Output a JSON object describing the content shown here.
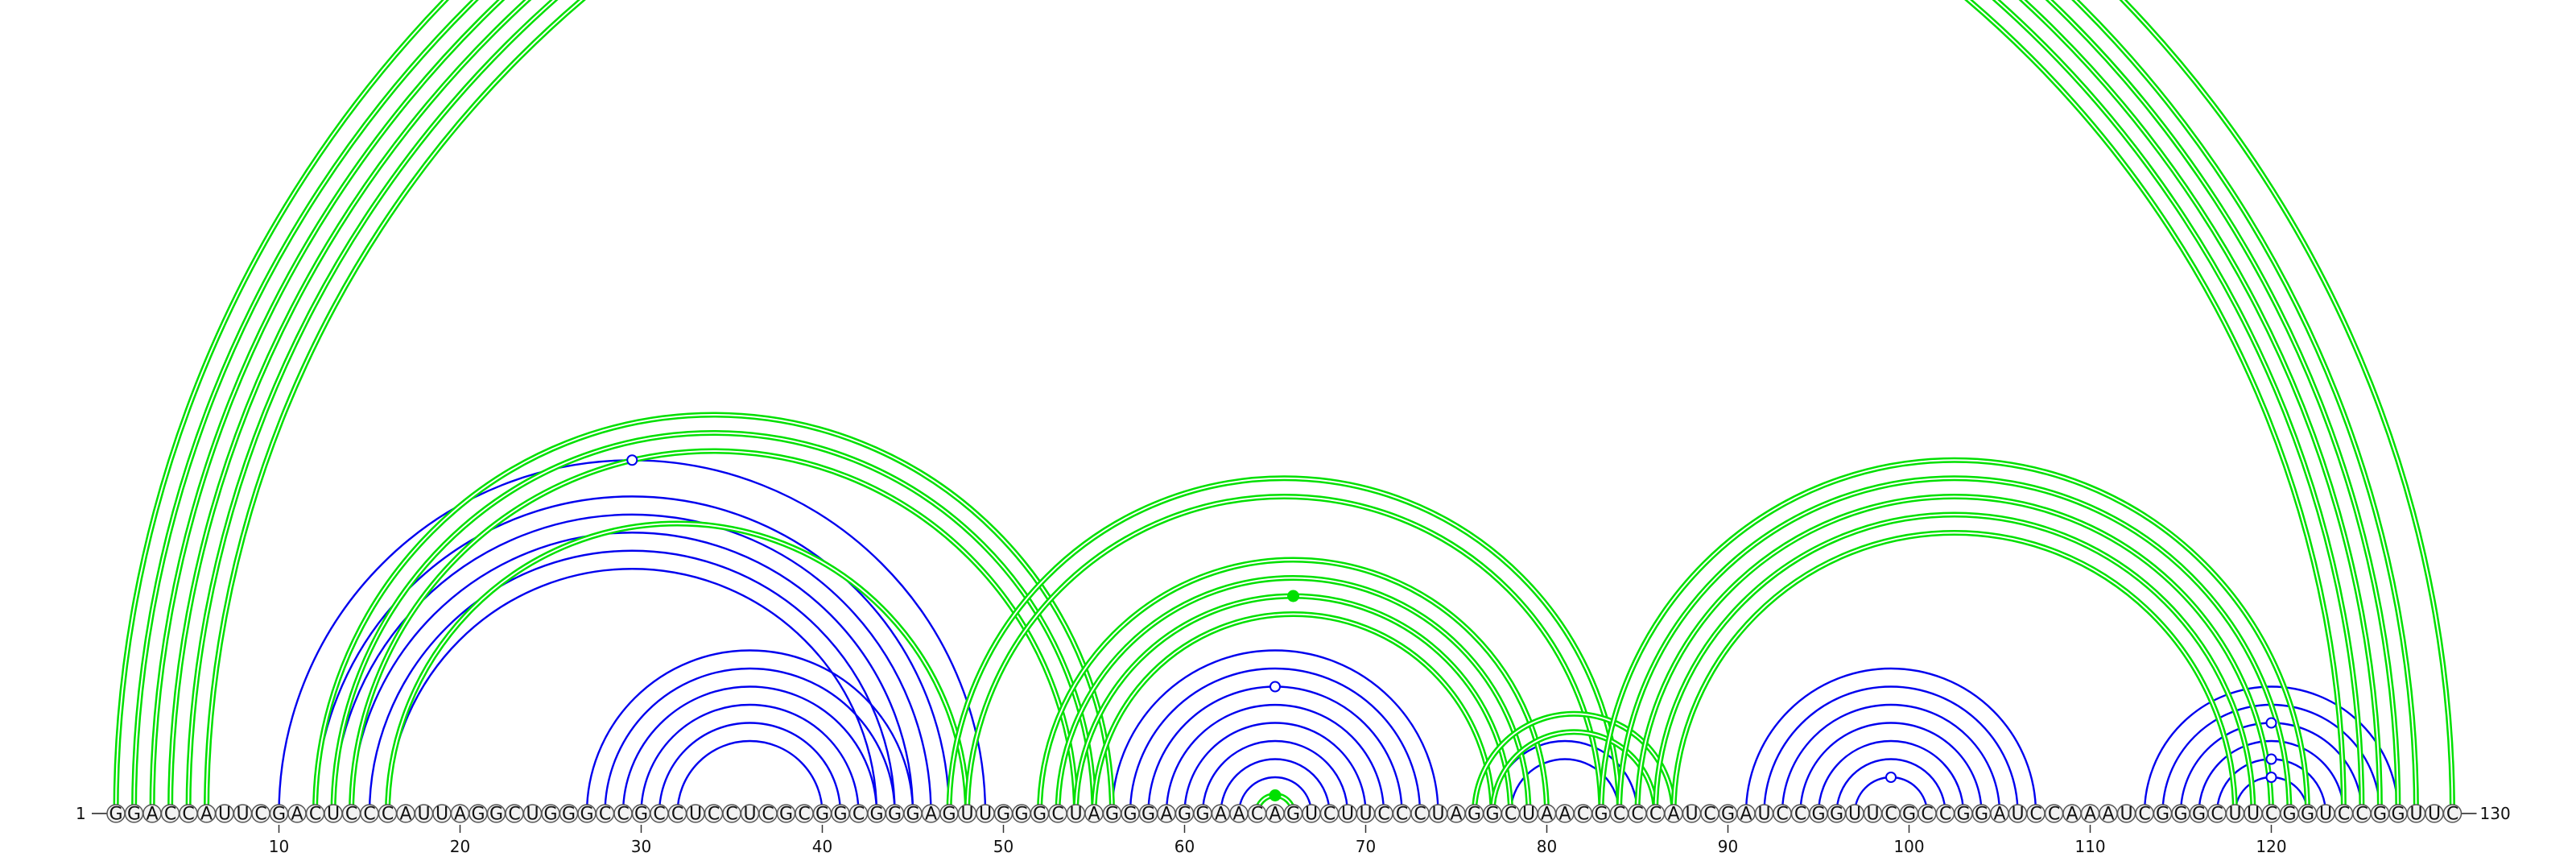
{
  "sequence": "GGACCAUUCGACUCCCAUUAGGCUGGGCCGCCUCCUCGCGGCGGGAGUUGGGCUAGGGAGGAACAGUCUUCCCUAGGCUAACGCCCAUCGAUCCGGUUCGCCGGAUCCAAAUCGGGCUUCGGUCCGGUUC",
  "start_label": "1",
  "end_label": "130",
  "ticks": [
    {
      "pos": 10,
      "label": "10"
    },
    {
      "pos": 20,
      "label": "20"
    },
    {
      "pos": 30,
      "label": "30"
    },
    {
      "pos": 40,
      "label": "40"
    },
    {
      "pos": 50,
      "label": "50"
    },
    {
      "pos": 60,
      "label": "60"
    },
    {
      "pos": 70,
      "label": "70"
    },
    {
      "pos": 80,
      "label": "80"
    },
    {
      "pos": 90,
      "label": "90"
    },
    {
      "pos": 100,
      "label": "100"
    },
    {
      "pos": 110,
      "label": "110"
    },
    {
      "pos": 120,
      "label": "120"
    }
  ],
  "colors": {
    "structure_a": "#0000ee",
    "structure_b": "#00e000",
    "nucleotide_fill": "#f2f2f2",
    "nucleotide_stroke": "#555555"
  },
  "chart_data": {
    "type": "arc-diagram",
    "blue_arcs": [
      [
        10,
        49
      ],
      [
        12,
        47
      ],
      [
        13,
        46
      ],
      [
        14,
        45
      ],
      [
        15,
        44
      ],
      [
        16,
        43
      ],
      [
        27,
        45
      ],
      [
        28,
        44
      ],
      [
        29,
        43
      ],
      [
        30,
        42
      ],
      [
        31,
        41
      ],
      [
        32,
        40
      ],
      [
        56,
        74
      ],
      [
        57,
        73
      ],
      [
        58,
        72
      ],
      [
        59,
        71
      ],
      [
        60,
        70
      ],
      [
        61,
        69
      ],
      [
        62,
        68
      ],
      [
        63,
        67
      ],
      [
        77,
        85
      ],
      [
        78,
        84
      ],
      [
        91,
        107
      ],
      [
        92,
        106
      ],
      [
        93,
        105
      ],
      [
        94,
        104
      ],
      [
        95,
        103
      ],
      [
        96,
        102
      ],
      [
        97,
        101
      ],
      [
        113,
        127
      ],
      [
        114,
        126
      ],
      [
        115,
        125
      ],
      [
        116,
        124
      ],
      [
        117,
        123
      ],
      [
        118,
        122
      ]
    ],
    "green_arcs": [
      [
        1,
        130
      ],
      [
        2,
        128
      ],
      [
        3,
        127
      ],
      [
        4,
        126
      ],
      [
        5,
        125
      ],
      [
        6,
        124
      ],
      [
        12,
        56
      ],
      [
        13,
        55
      ],
      [
        14,
        54
      ],
      [
        16,
        48
      ],
      [
        47,
        84
      ],
      [
        48,
        83
      ],
      [
        52,
        80
      ],
      [
        53,
        79
      ],
      [
        54,
        78
      ],
      [
        55,
        77
      ],
      [
        64,
        66
      ],
      [
        76,
        87
      ],
      [
        77,
        86
      ],
      [
        83,
        122
      ],
      [
        84,
        121
      ],
      [
        85,
        120
      ],
      [
        86,
        119
      ],
      [
        87,
        118
      ]
    ],
    "blue_open_markers": [
      [
        10,
        49
      ],
      [
        58,
        72
      ],
      [
        115,
        125
      ],
      [
        117,
        123
      ],
      [
        118,
        122
      ],
      [
        97,
        101
      ]
    ],
    "green_filled_markers": [
      [
        54,
        78
      ],
      [
        64,
        66
      ]
    ]
  }
}
